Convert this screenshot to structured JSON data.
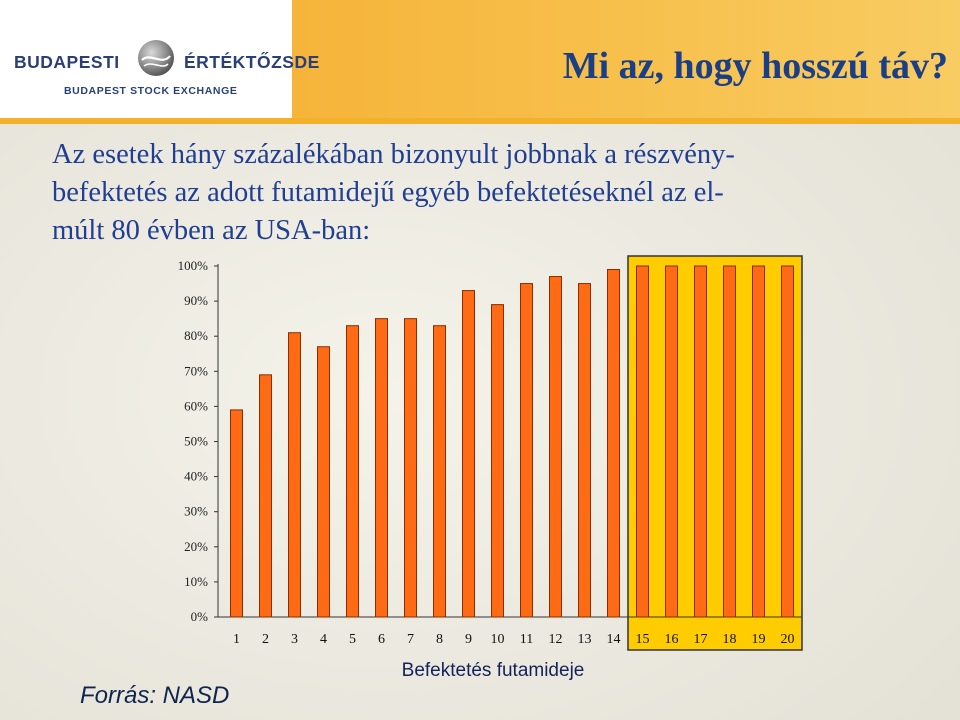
{
  "header": {
    "logo_left": "BUDAPESTI",
    "logo_right": "ÉRTÉKTŐZSDE",
    "logo_sub": "BUDAPEST STOCK EXCHANGE",
    "title": "Mi az, hogy hosszú táv?"
  },
  "subtitle": [
    "Az esetek hány százalékában bizonyult jobbnak a részvény-",
    "befektetés az adott futamidejű egyéb befektetéseknél az el-",
    "múlt 80 évben az USA-ban:"
  ],
  "source": "Forrás: NASD",
  "colors": {
    "header_bar": "#f7bd45",
    "bar_fill": "#ff6a14",
    "bar_stroke": "#8a2d00",
    "highlight": "#ffcc00",
    "title_text": "#1b3f86",
    "body_text": "#1f3e94"
  },
  "chart_data": {
    "type": "bar",
    "categories": [
      "1",
      "2",
      "3",
      "4",
      "5",
      "6",
      "7",
      "8",
      "9",
      "10",
      "11",
      "12",
      "13",
      "14",
      "15",
      "16",
      "17",
      "18",
      "19",
      "20"
    ],
    "values": [
      59,
      69,
      81,
      77,
      83,
      85,
      85,
      83,
      93,
      89,
      95,
      97,
      95,
      99,
      100,
      100,
      100,
      100,
      100,
      100
    ],
    "y_ticks": [
      "0%",
      "10%",
      "20%",
      "30%",
      "40%",
      "50%",
      "60%",
      "70%",
      "80%",
      "90%",
      "100%"
    ],
    "ylim": [
      0,
      100
    ],
    "xlabel": "Befektetés futamideje",
    "ylabel": "",
    "highlight_categories": [
      "15",
      "16",
      "17",
      "18",
      "19",
      "20"
    ],
    "grid": false,
    "legend": "none"
  }
}
